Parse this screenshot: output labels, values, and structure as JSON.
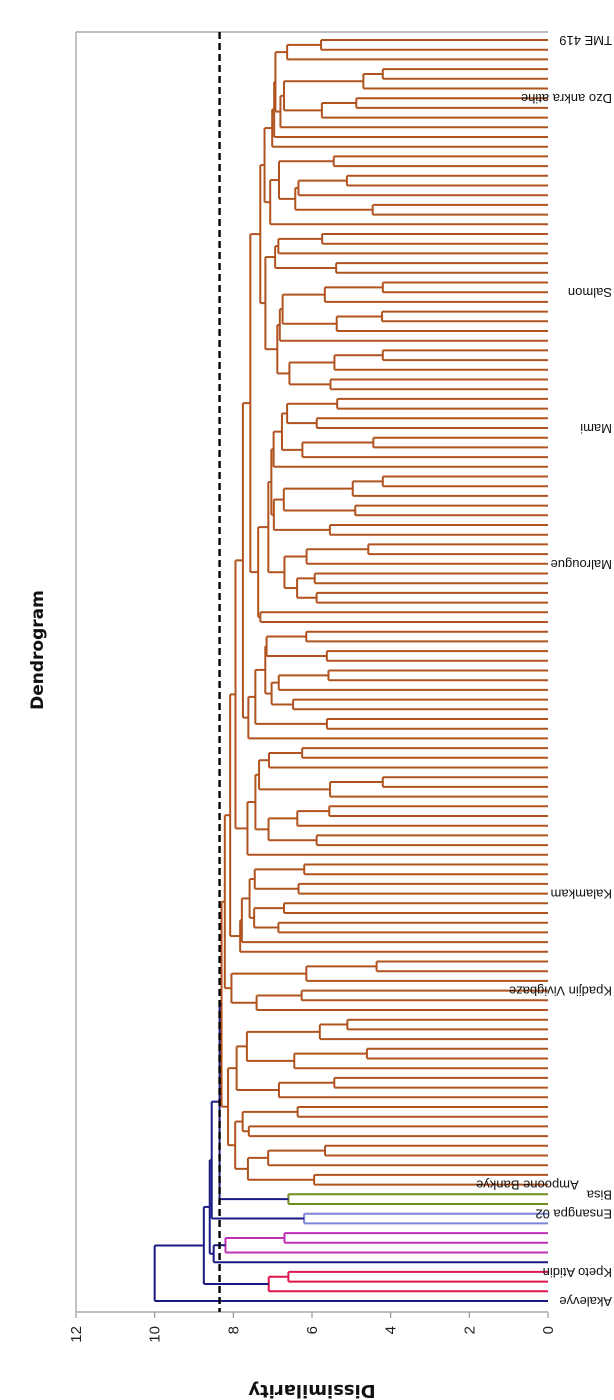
{
  "chart_data": {
    "type": "dendrogram",
    "title": "Dendrogram",
    "ylabel": "Dissimilarity",
    "ylim": [
      0,
      12
    ],
    "ticks": [
      "12",
      "10",
      "8",
      "6",
      "4",
      "2",
      "0"
    ],
    "tick_values": [
      12,
      10,
      8,
      6,
      4,
      2,
      0
    ],
    "cut_line": 8.35,
    "orientation": "rotated, leaves on right",
    "colors": {
      "link": "#1a1a85",
      "brown": "#b0531f",
      "red": "#e0144c",
      "magenta": "#c030b4",
      "lightblue": "#7c86d6",
      "green": "#6e8b1f",
      "axis": "#999999",
      "cut_line": "#000000"
    },
    "tree": {
      "h": 10.0,
      "color": "link",
      "children": [
        {
          "label": "Akalevye",
          "color": "link"
        },
        {
          "h": 8.75,
          "color": "link",
          "children": [
            {
              "h": 7.1,
              "color": "red",
              "children": [
                {
                  "label": "",
                  "color": "red"
                },
                {
                  "h": 6.6,
                  "color": "red",
                  "children": [
                    {
                      "label": "",
                      "color": "red"
                    },
                    {
                      "label": "Kpeto Atidin",
                      "color": "red"
                    }
                  ]
                }
              ]
            },
            {
              "h": 8.6,
              "color": "link",
              "children": [
                {
                  "h": 8.5,
                  "color": "link",
                  "children": [
                    {
                      "label": "",
                      "color": "link"
                    },
                    {
                      "h": 8.2,
                      "color": "magenta",
                      "children": [
                        {
                          "label": "",
                          "color": "magenta"
                        },
                        {
                          "h": 6.7,
                          "color": "magenta",
                          "children": [
                            {
                              "label": "",
                              "color": "magenta"
                            },
                            {
                              "label": "",
                              "color": "magenta"
                            }
                          ]
                        }
                      ]
                    }
                  ]
                },
                {
                  "h": 8.55,
                  "color": "link",
                  "children": [
                    {
                      "h": 6.2,
                      "color": "lightblue",
                      "children": [
                        {
                          "label": "",
                          "color": "lightblue"
                        },
                        {
                          "label": "Ensangpa 02",
                          "color": "lightblue"
                        }
                      ]
                    },
                    {
                      "h": 8.35,
                      "color": "link",
                      "children": [
                        {
                          "h": 6.6,
                          "color": "green",
                          "children": [
                            {
                              "label": "",
                              "color": "green"
                            },
                            {
                              "label": "Bisa",
                              "color": "green"
                            }
                          ]
                        },
                        {
                          "cluster": true,
                          "leaves": 119,
                          "h": 8.3,
                          "min_h": 4.2,
                          "color": "brown",
                          "named_leaves": {
                            "0": "Ampoone Bankye",
                            "20": "Kpadjin Vivigbaze",
                            "30": "Kalamkam",
                            "64": "Malrougue",
                            "78": "Mami",
                            "92": "Salmon",
                            "112": "Dzo ankra atihe",
                            "118": "TME 419"
                          }
                        }
                      ]
                    }
                  ]
                }
              ]
            }
          ]
        }
      ]
    }
  }
}
